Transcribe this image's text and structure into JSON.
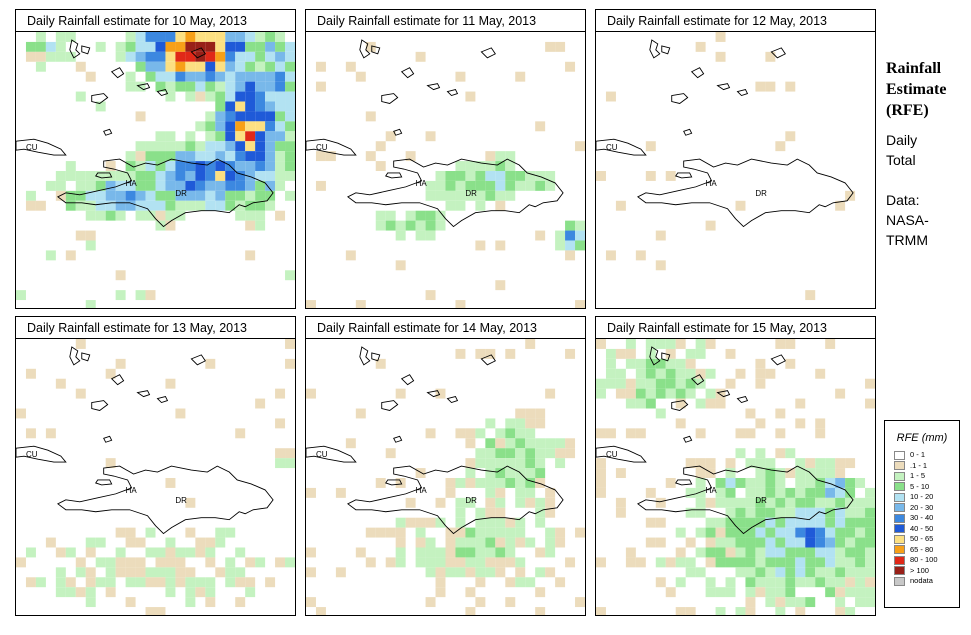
{
  "panels": [
    {
      "title": "Daily Rainfall estimate for  10 May, 2013"
    },
    {
      "title": "Daily Rainfall estimate for  11 May, 2013"
    },
    {
      "title": "Daily Rainfall estimate for  12 May, 2013"
    },
    {
      "title": "Daily Rainfall estimate for  13 May, 2013"
    },
    {
      "title": "Daily Rainfall estimate for  14 May, 2013"
    },
    {
      "title": "Daily Rainfall estimate for  15 May, 2013"
    }
  ],
  "map_labels": {
    "cuba": "CU",
    "haiti": "HA",
    "dr": "DR"
  },
  "side": {
    "title_line1": "Rainfall",
    "title_line2": "Estimate",
    "title_line3": "(RFE)",
    "period_line1": "Daily",
    "period_line2": "Total",
    "source_line1": "Data:",
    "source_line2": "NASA-",
    "source_line3": "TRMM"
  },
  "legend": {
    "title": "RFE (mm)",
    "items": [
      {
        "label": "0 - 1",
        "color": "#ffffff"
      },
      {
        "label": ".1 - 1",
        "color": "#ecdcbc"
      },
      {
        "label": "1 - 5",
        "color": "#c4f2c0"
      },
      {
        "label": "5 - 10",
        "color": "#8ae08a"
      },
      {
        "label": "10 - 20",
        "color": "#b2e2f2"
      },
      {
        "label": "20 - 30",
        "color": "#78b8ea"
      },
      {
        "label": "30 - 40",
        "color": "#3c88e0"
      },
      {
        "label": "40 - 50",
        "color": "#1f5ad8"
      },
      {
        "label": "50 - 65",
        "color": "#fce082"
      },
      {
        "label": "65 - 80",
        "color": "#f7a018"
      },
      {
        "label": "80 - 100",
        "color": "#e02818"
      },
      {
        "label": "> 100",
        "color": "#982018"
      },
      {
        "label": "nodata",
        "color": "#c8c8c8"
      }
    ]
  }
}
